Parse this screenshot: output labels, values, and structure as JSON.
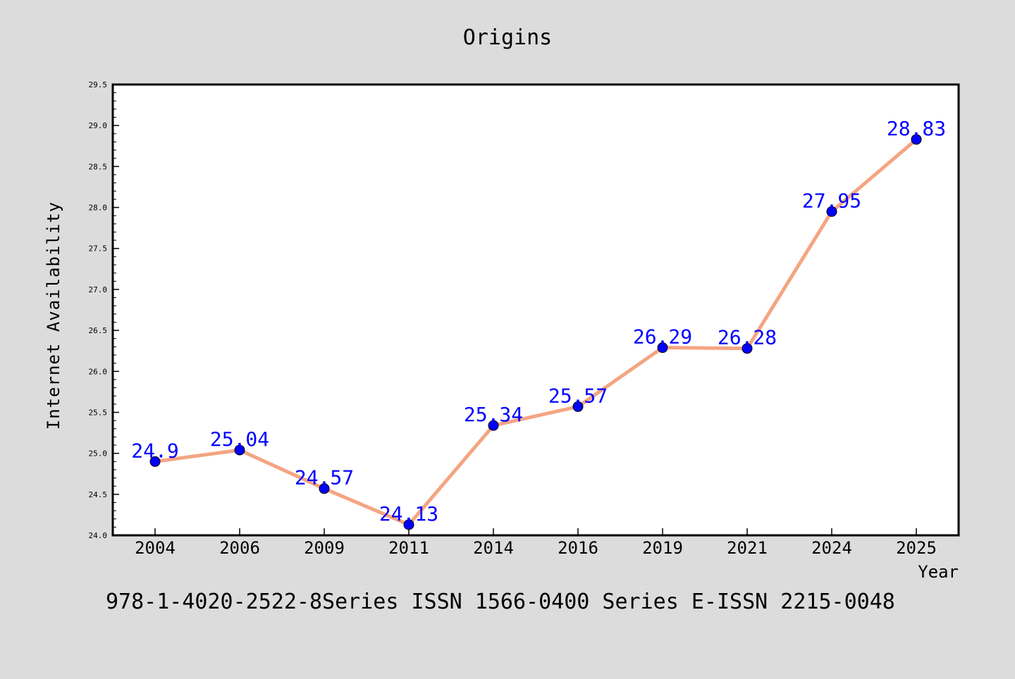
{
  "chart_data": {
    "type": "line",
    "title": "Origins",
    "xlabel": "Year",
    "ylabel": "Internet Availability",
    "categories": [
      "2004",
      "2006",
      "2009",
      "2011",
      "2014",
      "2016",
      "2019",
      "2021",
      "2024",
      "2025"
    ],
    "series": [
      {
        "values": [
          24.9,
          25.04,
          24.57,
          24.13,
          25.34,
          25.57,
          26.29,
          26.28,
          27.95,
          28.83
        ]
      }
    ],
    "data_labels": [
      "24.9",
      "25.04",
      "24.57",
      "24.13",
      "25.34",
      "25.57",
      "26.29",
      "26.28",
      "27.95",
      "28.83"
    ],
    "ylim": [
      24.0,
      29.5
    ],
    "yticks": [
      "24.0",
      "24.5",
      "25.0",
      "25.5",
      "26.0",
      "26.5",
      "27.0",
      "27.5",
      "28.0",
      "28.5",
      "29.0",
      "29.5"
    ],
    "grid": false,
    "footer": "978-1-4020-2522-8Series ISSN 1566-0400 Series E-ISSN 2215-0048",
    "colors": {
      "background": "#dcdcdc",
      "plot_background": "#ffffff",
      "line": "#f4a582",
      "marker": "#0000ff",
      "label": "#0000ff",
      "text": "#000000"
    }
  }
}
